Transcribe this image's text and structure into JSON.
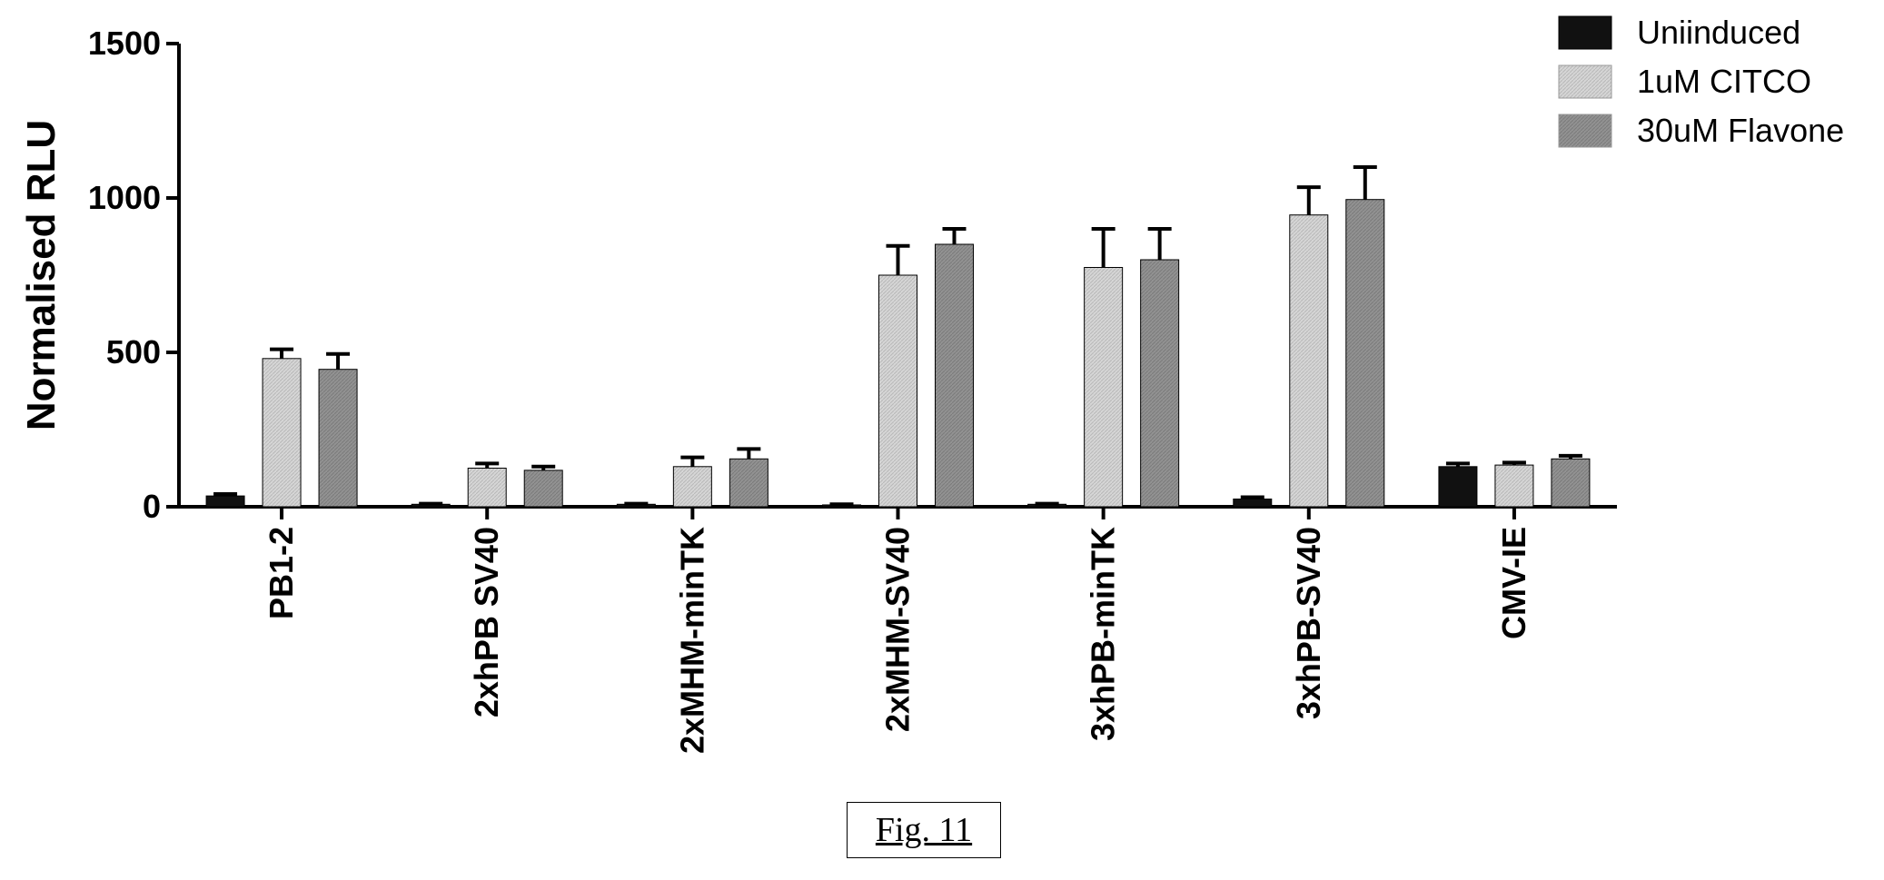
{
  "chart_data": {
    "type": "bar",
    "ylabel": "Normalised RLU",
    "xlabel": "",
    "ylim": [
      0,
      1500
    ],
    "yticks": [
      0,
      500,
      1000,
      1500
    ],
    "categories": [
      "PB1-2",
      "2xhPB SV40",
      "2xMHM-minTK",
      "2xMHM-SV40",
      "3xhPB-minTK",
      "3xhPB-SV40",
      "CMV-IE"
    ],
    "series": [
      {
        "name": "Uniinduced",
        "color": "#111111",
        "values": [
          35,
          8,
          8,
          6,
          8,
          25,
          130
        ],
        "errors": [
          6,
          2,
          2,
          2,
          2,
          6,
          10
        ]
      },
      {
        "name": "1uM CITCO",
        "color": "#cfcfcf",
        "values": [
          480,
          125,
          130,
          750,
          775,
          945,
          135
        ],
        "errors": [
          30,
          15,
          30,
          95,
          125,
          90,
          8
        ]
      },
      {
        "name": "30uM Flavone",
        "color": "#8c8c8c",
        "values": [
          445,
          118,
          155,
          850,
          800,
          995,
          155
        ],
        "errors": [
          50,
          12,
          32,
          50,
          100,
          105,
          10
        ]
      }
    ],
    "legend_position": "top-right",
    "grid": false
  },
  "caption": "Fig. 11"
}
